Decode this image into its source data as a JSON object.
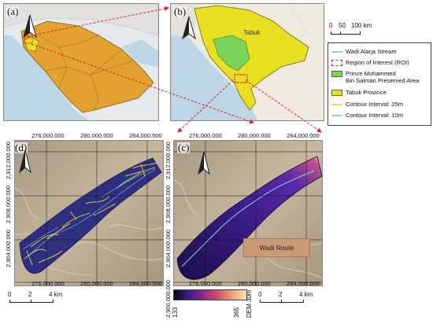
{
  "panels": {
    "a": {
      "label": "(a)"
    },
    "b": {
      "label": "(b)",
      "place_label": "Tabuk"
    },
    "c": {
      "label": "(c)",
      "route_label": "Wadi Route"
    },
    "d": {
      "label": "(d)"
    }
  },
  "ticks": {
    "x": [
      "276,000.000",
      "280,000.000",
      "284,000.000"
    ],
    "y": [
      "2,912,000.000",
      "2,908,000.000",
      "2,904,000.000",
      "2,900,000.000"
    ]
  },
  "scalebars": {
    "top": {
      "labels": [
        "0",
        "50",
        "100 km"
      ]
    },
    "d": {
      "labels": [
        "0",
        "2",
        "4 km"
      ]
    },
    "c": {
      "labels": [
        "0",
        "2",
        "4 km"
      ]
    }
  },
  "legend": {
    "items": [
      {
        "text": "Wadi Alarja Stream",
        "color": "#8fd3e8",
        "kind": "line"
      },
      {
        "text": "Region of Interest (ROI)",
        "color": "#e02020",
        "kind": "dashed-box"
      },
      {
        "text": "Prince Mohammed",
        "text2": "Bin Salman Preserved Area",
        "color": "#7bd35a",
        "kind": "fill"
      },
      {
        "text": "Tabuk Province",
        "color": "#e8e020",
        "kind": "fill"
      },
      {
        "text": "Contour Interval: 25m",
        "color": "#f0e040",
        "kind": "line"
      },
      {
        "text": "Contour Interval: 10m",
        "color": "#8fd3e8",
        "kind": "line"
      }
    ]
  },
  "colorbar": {
    "min": "133",
    "max": "365",
    "title": "DEM 30m"
  },
  "colors": {
    "saudi_fill": "#e3a12f",
    "tabuk_fill": "#e8e020",
    "preserve_fill": "#7bd35a",
    "sea": "#bcd6e6",
    "land": "#efeae0",
    "roi": "#e02020"
  }
}
